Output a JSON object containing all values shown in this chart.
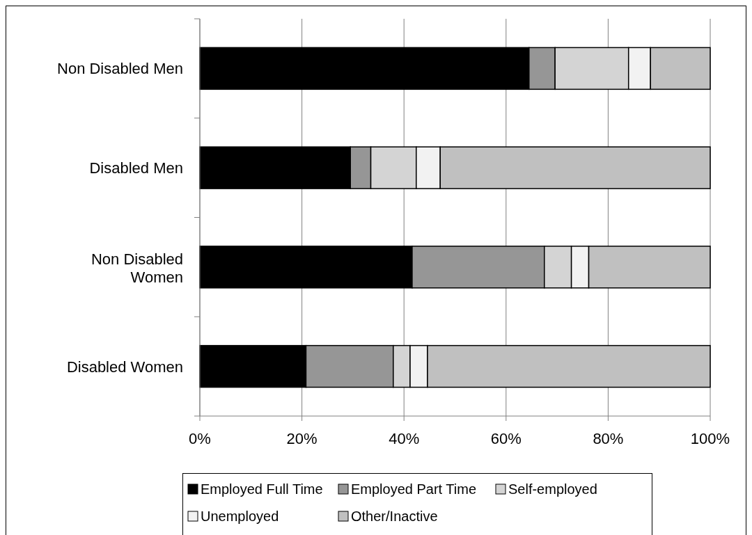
{
  "chart_data": {
    "type": "bar",
    "orientation": "horizontal",
    "stacked": true,
    "categories": [
      "Non Disabled Men",
      "Disabled Men",
      "Non Disabled Women",
      "Disabled Women"
    ],
    "series": [
      {
        "name": "Employed Full Time",
        "color": "#000000",
        "values": [
          64.5,
          29.5,
          41.6,
          20.8
        ]
      },
      {
        "name": "Employed Part Time",
        "color": "#969696",
        "values": [
          5.1,
          4.0,
          25.9,
          17.1
        ]
      },
      {
        "name": "Self-employed",
        "color": "#d4d4d4",
        "values": [
          14.4,
          8.9,
          5.3,
          3.3
        ]
      },
      {
        "name": "Unemployed",
        "color": "#f2f2f2",
        "values": [
          4.3,
          4.7,
          3.4,
          3.4
        ]
      },
      {
        "name": "Other/Inactive",
        "color": "#c0c0c0",
        "values": [
          11.7,
          52.9,
          23.8,
          55.4
        ]
      }
    ],
    "xlim": [
      0,
      100
    ],
    "xticks": [
      {
        "value": 0,
        "label": "0%"
      },
      {
        "value": 20,
        "label": "20%"
      },
      {
        "value": 40,
        "label": "40%"
      },
      {
        "value": 60,
        "label": "60%"
      },
      {
        "value": 80,
        "label": "80%"
      },
      {
        "value": 100,
        "label": "100%"
      }
    ],
    "grid": "x",
    "legend": "bottom"
  }
}
